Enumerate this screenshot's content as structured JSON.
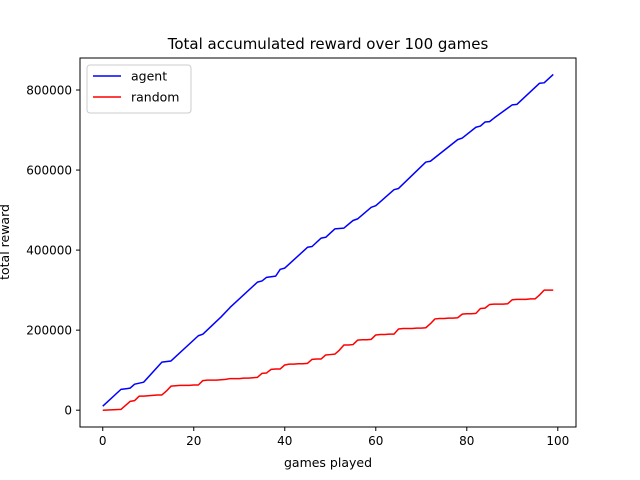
{
  "chart_data": {
    "type": "line",
    "title": "Total accumulated reward over 100 games",
    "xlabel": "games played",
    "ylabel": "total reward",
    "xlim": [
      -5,
      104
    ],
    "ylim": [
      -42000,
      880000
    ],
    "xticks": [
      0,
      20,
      40,
      60,
      80,
      100
    ],
    "yticks": [
      0,
      200000,
      400000,
      600000,
      800000
    ],
    "grid": false,
    "legend_position": "top-left",
    "series": [
      {
        "name": "agent",
        "color": "#0000ff",
        "x": [
          0,
          4,
          6,
          7,
          9,
          13,
          15,
          21,
          22,
          26,
          28,
          34,
          35,
          36,
          38,
          39,
          40,
          45,
          46,
          48,
          49,
          51,
          53,
          55,
          56,
          59,
          60,
          64,
          65,
          71,
          72,
          78,
          79,
          82,
          83,
          84,
          85,
          86,
          90,
          91,
          96,
          97,
          99
        ],
        "y": [
          10000,
          52000,
          55000,
          65000,
          70000,
          120000,
          123000,
          186000,
          190000,
          233000,
          257000,
          320000,
          323000,
          332000,
          335000,
          352000,
          355000,
          407000,
          409000,
          430000,
          432000,
          453000,
          455000,
          474000,
          478000,
          507000,
          511000,
          551000,
          554000,
          620000,
          622000,
          676000,
          680000,
          707000,
          710000,
          720000,
          721000,
          730000,
          763000,
          764000,
          817000,
          818000,
          839000
        ]
      },
      {
        "name": "random",
        "color": "#ff0000",
        "x": [
          0,
          4,
          6,
          7,
          8,
          9,
          10,
          11,
          12,
          13,
          14,
          15,
          16,
          17,
          19,
          20,
          21,
          22,
          23,
          24,
          25,
          26,
          27,
          28,
          29,
          30,
          31,
          32,
          33,
          34,
          35,
          36,
          37,
          38,
          39,
          40,
          41,
          42,
          43,
          44,
          45,
          46,
          47,
          48,
          49,
          50,
          51,
          52,
          53,
          54,
          55,
          56,
          57,
          58,
          59,
          60,
          61,
          62,
          63,
          64,
          65,
          66,
          67,
          68,
          69,
          70,
          71,
          72,
          73,
          74,
          75,
          76,
          77,
          78,
          79,
          80,
          81,
          82,
          83,
          84,
          85,
          86,
          87,
          88,
          89,
          90,
          91,
          92,
          93,
          94,
          95,
          96,
          97,
          98,
          99
        ],
        "y": [
          0,
          2000,
          22000,
          24000,
          35000,
          35000,
          36000,
          37000,
          38000,
          38000,
          48000,
          60000,
          61000,
          62000,
          62000,
          63000,
          63000,
          74000,
          75000,
          75000,
          75000,
          76000,
          77000,
          79000,
          79000,
          79000,
          80000,
          80000,
          81000,
          82000,
          92000,
          93000,
          102000,
          103000,
          103000,
          113000,
          115000,
          115000,
          116000,
          116000,
          117000,
          127000,
          128000,
          128000,
          138000,
          139000,
          140000,
          150000,
          163000,
          163000,
          164000,
          175000,
          176000,
          176000,
          177000,
          188000,
          189000,
          189000,
          190000,
          190000,
          203000,
          204000,
          204000,
          204000,
          205000,
          205000,
          206000,
          216000,
          228000,
          229000,
          229000,
          230000,
          230000,
          231000,
          240000,
          241000,
          241000,
          242000,
          254000,
          255000,
          264000,
          265000,
          265000,
          265000,
          266000,
          276000,
          277000,
          277000,
          277000,
          278000,
          278000,
          288000,
          300000,
          300000,
          300000
        ]
      }
    ]
  }
}
